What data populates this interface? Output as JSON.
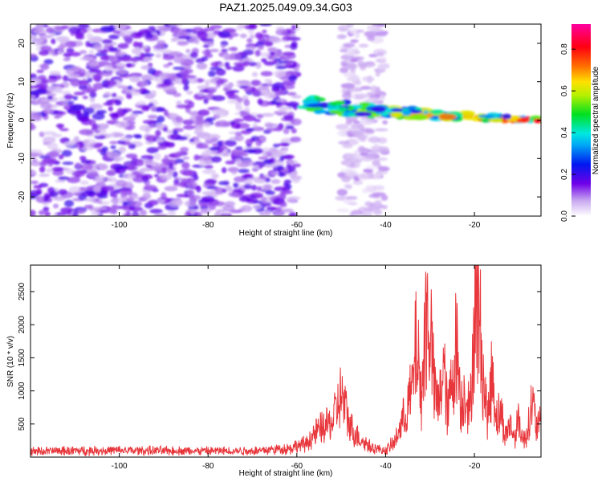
{
  "title": "PAZ1.2025.049.09.34.G03",
  "chart_data": [
    {
      "type": "heatmap",
      "xlabel": "Height of straight line (km)",
      "ylabel": "Frequency (Hz)",
      "xlim": [
        -120,
        -5
      ],
      "ylim": [
        -25,
        25
      ],
      "x_ticks": [
        -100,
        -80,
        -60,
        -40,
        -20
      ],
      "y_ticks": [
        20,
        10,
        0,
        -10,
        -20
      ],
      "colorbar": {
        "label": "Normalized spectral amplitude",
        "range": [
          0,
          0.92
        ],
        "ticks": [
          "0.0",
          "0.2",
          "0.4",
          "0.6",
          "0.8"
        ],
        "colormap": "rainbow (white-violet-blue-cyan-green-yellow-red-magenta)"
      },
      "features": [
        {
          "region_km": [
            -120,
            -60
          ],
          "frequency_hz": [
            -25,
            25
          ],
          "amplitude": 0.1,
          "description": "broadband noise"
        },
        {
          "region_km": [
            -50,
            -40
          ],
          "frequency_hz": [
            -25,
            25
          ],
          "amplitude": 0.05,
          "description": "weak noise band"
        },
        {
          "region_km": [
            -58,
            -5
          ],
          "frequency_hz": [
            5,
            0
          ],
          "amplitude_range": [
            0.2,
            0.9
          ],
          "description": "narrow signal tone converging to ~0 Hz"
        }
      ]
    },
    {
      "type": "line",
      "xlabel": "Height of straight line (km)",
      "ylabel": "SNR (10 * v/v)",
      "xlim": [
        -120,
        -5
      ],
      "ylim": [
        0,
        2900
      ],
      "x_ticks": [
        -100,
        -80,
        -60,
        -40,
        -20
      ],
      "y_ticks": [
        500,
        1000,
        1500,
        2000,
        2500
      ],
      "color": "#e8373c",
      "x": [
        -120,
        -110,
        -100,
        -90,
        -80,
        -70,
        -62,
        -58,
        -55,
        -52,
        -50,
        -48,
        -46,
        -44,
        -42,
        -40,
        -38,
        -36,
        -34,
        -33,
        -32,
        -31,
        -30,
        -29,
        -28,
        -27,
        -26,
        -25,
        -24,
        -23,
        -22,
        -21,
        -20,
        -19,
        -18,
        -17,
        -16,
        -15,
        -14,
        -13,
        -12,
        -11,
        -10,
        -9,
        -8,
        -7,
        -6,
        -5
      ],
      "y": [
        110,
        120,
        125,
        120,
        115,
        120,
        160,
        250,
        520,
        650,
        1180,
        580,
        360,
        230,
        150,
        120,
        280,
        720,
        1250,
        2250,
        1050,
        2550,
        2600,
        1200,
        950,
        1750,
        800,
        1500,
        2200,
        950,
        1300,
        780,
        2700,
        2800,
        1480,
        700,
        1620,
        750,
        850,
        400,
        620,
        380,
        720,
        300,
        520,
        1050,
        560,
        620
      ]
    }
  ]
}
